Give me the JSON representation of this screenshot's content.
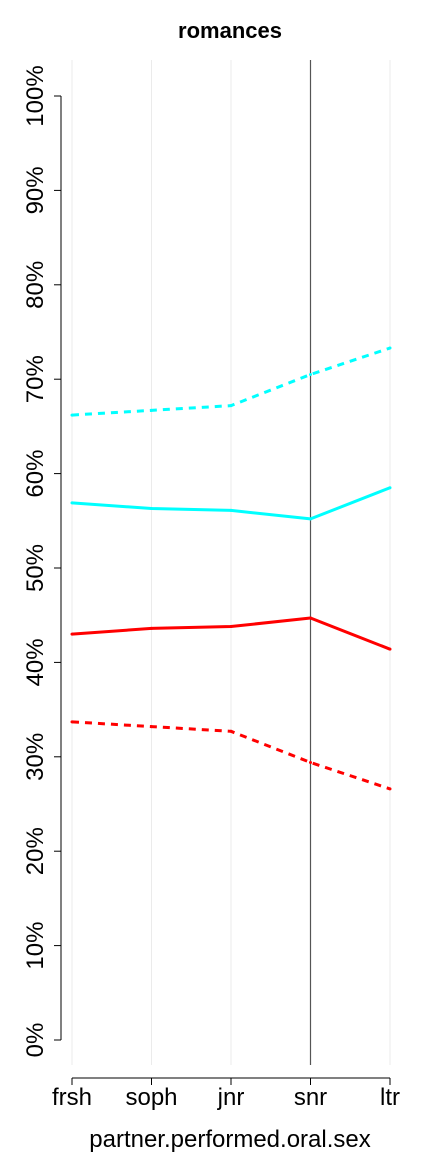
{
  "chart_data": {
    "type": "line",
    "title": "romances",
    "xlabel": "partner.performed.oral.sex",
    "ylabel": "",
    "categories": [
      "frsh",
      "soph",
      "jnr",
      "snr",
      "ltr"
    ],
    "ylim": [
      0,
      100
    ],
    "yticks": [
      0,
      10,
      20,
      30,
      40,
      50,
      60,
      70,
      80,
      90,
      100
    ],
    "ytick_labels": [
      "0%",
      "10%",
      "20%",
      "30%",
      "40%",
      "50%",
      "60%",
      "70%",
      "80%",
      "90%",
      "100%"
    ],
    "grid": "vertical",
    "reference_line_category": "snr",
    "series": [
      {
        "color": "#00FFFF",
        "style": "dashed",
        "values": [
          66.2,
          66.7,
          67.2,
          70.5,
          73.3
        ]
      },
      {
        "color": "#00FFFF",
        "style": "solid",
        "values": [
          56.9,
          56.3,
          56.1,
          55.2,
          58.5
        ]
      },
      {
        "color": "#FF0000",
        "style": "solid",
        "values": [
          43.0,
          43.6,
          43.8,
          44.7,
          41.4
        ]
      },
      {
        "color": "#FF0000",
        "style": "dashed",
        "values": [
          33.7,
          33.2,
          32.7,
          29.4,
          26.6
        ]
      }
    ]
  }
}
